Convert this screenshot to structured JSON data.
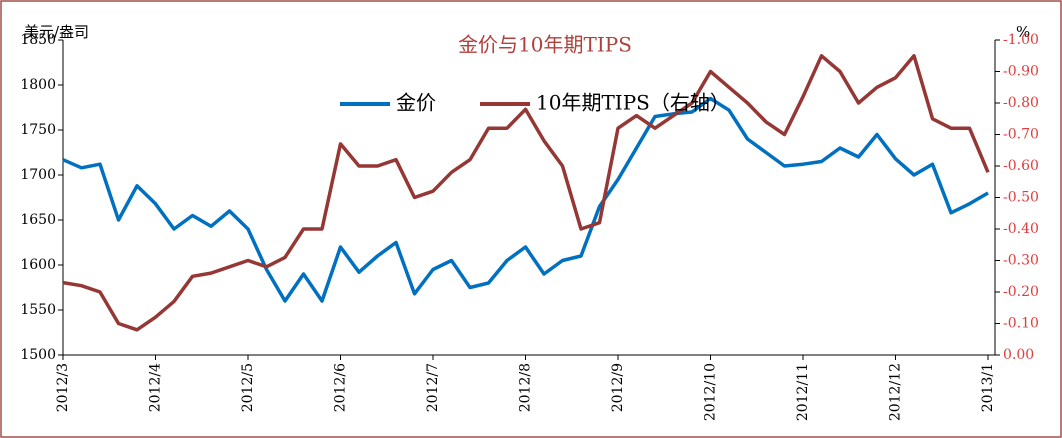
{
  "chart_data": {
    "type": "line",
    "title": "金价与10年期TIPS",
    "y_label": "美元/盎司",
    "y2_label": "%",
    "xticks": [
      "2012/3",
      "2012/4",
      "2012/5",
      "2012/6",
      "2012/7",
      "2012/8",
      "2012/9",
      "2012/10",
      "2012/11",
      "2012/12",
      "2013/1"
    ],
    "ylim": [
      1500,
      1850
    ],
    "yticks": [
      1500,
      1550,
      1600,
      1650,
      1700,
      1750,
      1800,
      1850
    ],
    "y2lim": [
      0,
      -1
    ],
    "y2ticks": [
      {
        "value": 0,
        "label": "0.00"
      },
      {
        "value": -0.1,
        "label": "-0.10"
      },
      {
        "value": -0.2,
        "label": "-0.20"
      },
      {
        "value": -0.3,
        "label": "-0.30"
      },
      {
        "value": -0.4,
        "label": "-0.40"
      },
      {
        "value": -0.5,
        "label": "-0.50"
      },
      {
        "value": -0.6,
        "label": "-0.60"
      },
      {
        "value": -0.7,
        "label": "-0.70"
      },
      {
        "value": -0.8,
        "label": "-0.80"
      },
      {
        "value": -0.9,
        "label": "-0.90"
      },
      {
        "value": -1,
        "label": "-1.00"
      }
    ],
    "legend": "top",
    "series": [
      {
        "name": "金价",
        "color": "#0070c0",
        "values": [
          1717,
          1708,
          1712,
          1650,
          1688,
          1668,
          1640,
          1655,
          1643,
          1660,
          1640,
          1595,
          1560,
          1590,
          1560,
          1620,
          1592,
          1610,
          1625,
          1568,
          1595,
          1605,
          1575,
          1580,
          1605,
          1620,
          1590,
          1605,
          1610,
          1665,
          1695,
          1730,
          1765,
          1768,
          1770,
          1785,
          1772,
          1740,
          1725,
          1710,
          1712,
          1715,
          1730,
          1720,
          1745,
          1718,
          1700,
          1712,
          1658,
          1668,
          1680
        ]
      },
      {
        "name": "10年期TIPS（右轴）",
        "color": "#953735",
        "axis": "y2",
        "values": [
          -0.23,
          -0.22,
          -0.2,
          -0.1,
          -0.08,
          -0.12,
          -0.17,
          -0.25,
          -0.26,
          -0.28,
          -0.3,
          -0.28,
          -0.31,
          -0.4,
          -0.4,
          -0.67,
          -0.6,
          -0.6,
          -0.62,
          -0.5,
          -0.52,
          -0.58,
          -0.62,
          -0.72,
          -0.72,
          -0.78,
          -0.68,
          -0.6,
          -0.4,
          -0.42,
          -0.72,
          -0.76,
          -0.72,
          -0.76,
          -0.8,
          -0.9,
          -0.85,
          -0.8,
          -0.74,
          -0.7,
          -0.82,
          -0.95,
          -0.9,
          -0.8,
          -0.85,
          -0.88,
          -0.95,
          -0.75,
          -0.72,
          -0.72,
          -0.58
        ]
      }
    ]
  }
}
